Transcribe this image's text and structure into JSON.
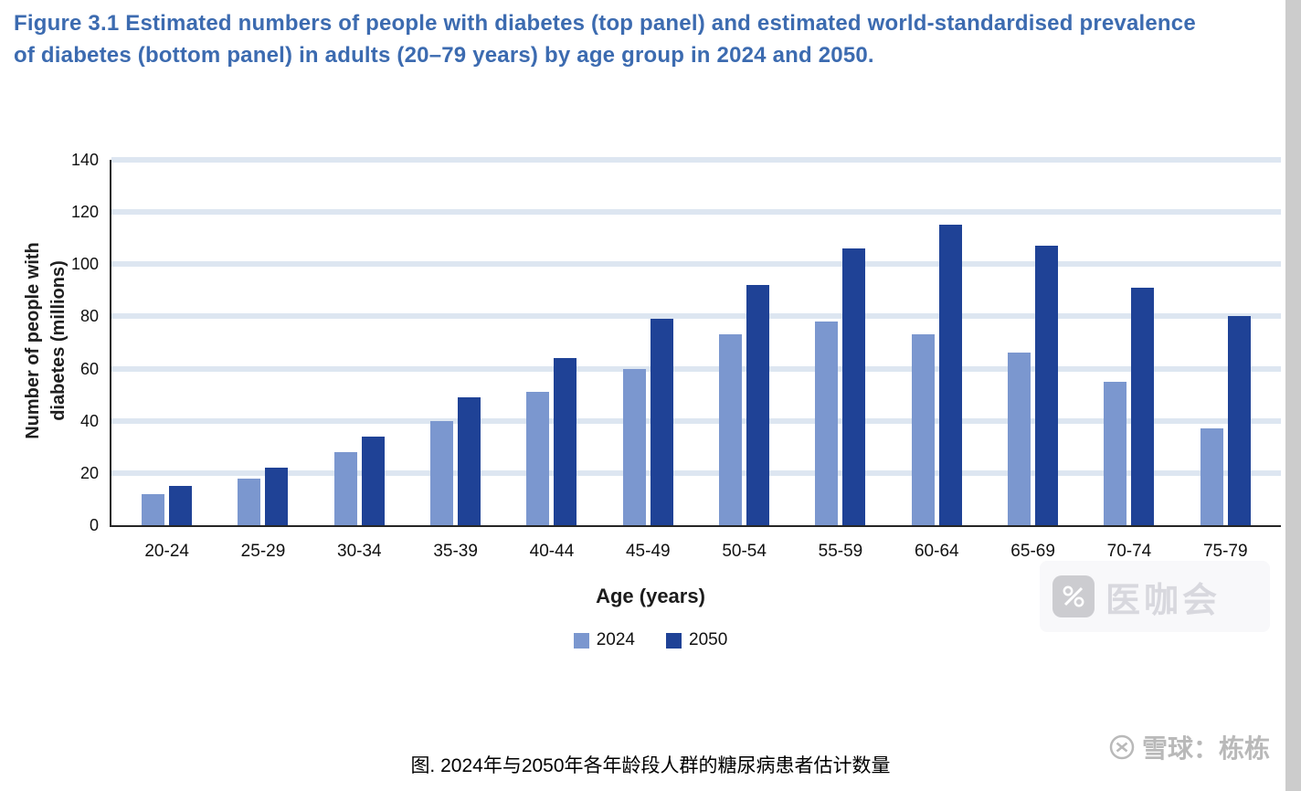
{
  "figure": {
    "title": "Figure 3.1 Estimated numbers of people with diabetes (top panel) and estimated world-standardised prevalence of diabetes (bottom panel) in adults (20–79 years) by age group in 2024 and 2050.",
    "caption_cn": "图. 2024年与2050年各年龄段人群的糖尿病患者估计数量"
  },
  "watermarks": {
    "center_overlay_text": "医咖会",
    "bottom_right_text": "雪球：栋栋"
  },
  "colors": {
    "title_blue": "#3c6bb0",
    "series_2024": "#7b97cf",
    "series_2050": "#1f4296",
    "gridline": "#dde6f1",
    "axis": "#262626",
    "watermark_gray": "#b9b9b9"
  },
  "chart_data": {
    "type": "bar",
    "title": "Estimated numbers of people with diabetes in adults (20–79 years) by age group in 2024 and 2050",
    "xlabel": "Age (years)",
    "ylabel": "Number of people with diabetes (millions)",
    "ylabel_lines": [
      "Number of people with",
      "diabetes (millions)"
    ],
    "ylim": [
      0,
      140
    ],
    "yticks": [
      0,
      20,
      40,
      60,
      80,
      100,
      120,
      140
    ],
    "grid": "horizontal",
    "legend_position": "bottom",
    "categories": [
      "20-24",
      "25-29",
      "30-34",
      "35-39",
      "40-44",
      "45-49",
      "50-54",
      "55-59",
      "60-64",
      "65-69",
      "70-74",
      "75-79"
    ],
    "series": [
      {
        "name": "2024",
        "color": "#7b97cf",
        "values": [
          12,
          18,
          28,
          40,
          51,
          60,
          73,
          78,
          73,
          66,
          55,
          37
        ]
      },
      {
        "name": "2050",
        "color": "#1f4296",
        "values": [
          15,
          22,
          34,
          49,
          64,
          79,
          92,
          106,
          115,
          107,
          91,
          80
        ]
      }
    ]
  }
}
